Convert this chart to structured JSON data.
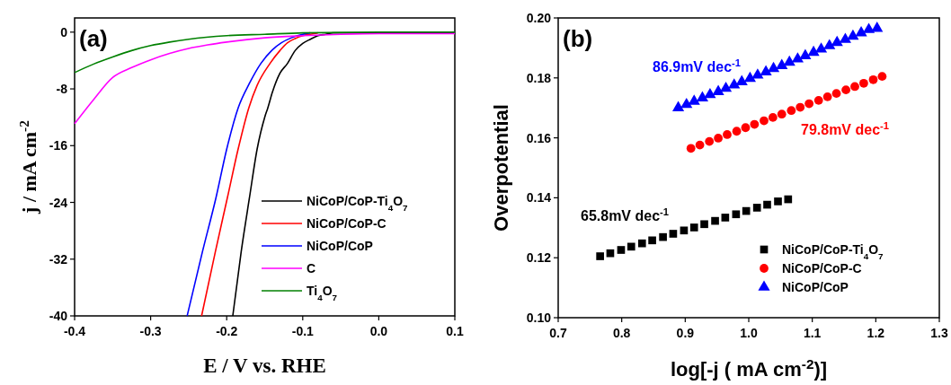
{
  "chart_data": [
    {
      "type": "line",
      "xlabel": "E / V vs. RHE",
      "ylabel": "j / mA cm$^{-2}$",
      "xlim": [
        -0.4,
        0.1
      ],
      "xticks": [
        -0.4,
        -0.3,
        -0.2,
        -0.1,
        {
          "value": 0,
          "label": "0.0"
        },
        0.1
      ],
      "ylim": [
        -40,
        2
      ],
      "yticks": [
        0,
        -8,
        -16,
        -24,
        -32,
        -40
      ],
      "legend": "bottom right",
      "grid": false,
      "annotations": [
        "(a)"
      ],
      "series": [
        {
          "name": "NiCoP/CoP-Ti$_{4}$O$_{7}$",
          "color": "#000000",
          "x": [
            -0.192,
            -0.181,
            -0.17,
            -0.16,
            -0.15,
            -0.146,
            -0.14,
            -0.13,
            -0.12,
            -0.11,
            -0.1,
            -0.09,
            -0.08,
            -0.07,
            -0.06,
            0.0,
            0.1
          ],
          "values": [
            -40,
            -31,
            -23.3,
            -16.5,
            -12,
            -10.7,
            -8.5,
            -5.8,
            -4.4,
            -2.6,
            -1.6,
            -1.0,
            -0.5,
            -0.3,
            -0.1,
            -0.1,
            -0.1
          ]
        },
        {
          "name": "NiCoP/CoP-C",
          "color": "#ff0000",
          "x": [
            -0.233,
            -0.215,
            -0.199,
            -0.185,
            -0.171,
            -0.16,
            -0.143,
            -0.13,
            -0.12,
            -0.11,
            -0.1,
            -0.09,
            -0.08
          ],
          "values": [
            -40,
            -31,
            -23.3,
            -16.5,
            -10.7,
            -7.5,
            -4.4,
            -2.6,
            -1.5,
            -0.9,
            -0.5,
            -0.3,
            -0.1
          ]
        },
        {
          "name": "NiCoP/CoP",
          "color": "#0000ff",
          "x": [
            -0.252,
            -0.232,
            -0.214,
            -0.2,
            -0.185,
            -0.17,
            -0.155,
            -0.14,
            -0.128,
            -0.115,
            -0.1,
            -0.09
          ],
          "values": [
            -40,
            -31,
            -23.3,
            -16.5,
            -10.7,
            -7.2,
            -4.4,
            -2.5,
            -1.5,
            -0.8,
            -0.3,
            -0.1
          ]
        },
        {
          "name": "C",
          "color": "#ff00ff",
          "x": [
            -0.4,
            -0.375,
            -0.35,
            -0.325,
            -0.3,
            -0.275,
            -0.25,
            -0.225,
            -0.2,
            -0.15,
            -0.1,
            -0.05,
            0.0,
            0.1
          ],
          "values": [
            -12.9,
            -9.5,
            -6.4,
            -5.0,
            -3.9,
            -3.0,
            -2.3,
            -1.8,
            -1.4,
            -0.8,
            -0.5,
            -0.3,
            -0.2,
            -0.2
          ]
        },
        {
          "name": "Ti$_{4}$O$_{7}$",
          "color": "#008000",
          "x": [
            -0.4,
            -0.375,
            -0.35,
            -0.325,
            -0.3,
            -0.275,
            -0.25,
            -0.2,
            -0.15,
            -0.1,
            0.0,
            0.1
          ],
          "values": [
            -5.7,
            -4.5,
            -3.5,
            -2.6,
            -1.9,
            -1.4,
            -1.0,
            -0.5,
            -0.3,
            -0.1,
            0.0,
            0.0
          ]
        }
      ]
    },
    {
      "type": "scatter",
      "xlabel": "log[-j ( mA cm$^{-2}$)]",
      "ylabel": "Overpotential",
      "xlim": [
        0.7,
        1.3
      ],
      "xticks": [
        0.7,
        0.8,
        0.9,
        {
          "value": 1,
          "label": "1.0"
        },
        1.1,
        1.2,
        1.3
      ],
      "ylim": [
        0.1,
        0.2
      ],
      "yticks": [
        {
          "value": 0.1,
          "label": "0.10"
        },
        {
          "value": 0.12,
          "label": "0.12"
        },
        {
          "value": 0.14,
          "label": "0.14"
        },
        {
          "value": 0.16,
          "label": "0.16"
        },
        {
          "value": 0.18,
          "label": "0.18"
        },
        {
          "value": 0.2,
          "label": "0.20"
        }
      ],
      "legend": "bottom right",
      "grid": false,
      "annotations": [
        "(b)",
        "86.9mV dec$^{-1}$",
        "79.8mV dec$^{-1}$",
        "65.8mV dec$^{-1}$"
      ],
      "series": [
        {
          "name": "NiCoP/CoP-Ti$_{4}$O$_{7}$",
          "color": "#000000",
          "marker": "square",
          "x": [
            0.766,
            0.782,
            0.799,
            0.815,
            0.832,
            0.848,
            0.865,
            0.881,
            0.898,
            0.914,
            0.93,
            0.947,
            0.963,
            0.98,
            0.996,
            1.013,
            1.029,
            1.046,
            1.062
          ],
          "values": [
            0.1205,
            0.1215,
            0.1226,
            0.1237,
            0.1248,
            0.1258,
            0.1269,
            0.128,
            0.1291,
            0.1301,
            0.1312,
            0.1323,
            0.1334,
            0.1345,
            0.1356,
            0.1367,
            0.1377,
            0.1388,
            0.1395
          ]
        },
        {
          "name": "NiCoP/CoP-C",
          "color": "#ff0000",
          "marker": "circle",
          "x": [
            0.909,
            0.923,
            0.938,
            0.952,
            0.966,
            0.981,
            0.995,
            1.009,
            1.024,
            1.038,
            1.052,
            1.067,
            1.081,
            1.095,
            1.11,
            1.124,
            1.138,
            1.153,
            1.167,
            1.181,
            1.196,
            1.21
          ],
          "values": [
            0.1565,
            0.1576,
            0.1588,
            0.1599,
            0.1611,
            0.1622,
            0.1634,
            0.1645,
            0.1657,
            0.1668,
            0.1679,
            0.1691,
            0.1702,
            0.1714,
            0.1725,
            0.1737,
            0.1748,
            0.176,
            0.1771,
            0.1782,
            0.1794,
            0.1805
          ]
        },
        {
          "name": "NiCoP/CoP",
          "color": "#0000ff",
          "marker": "triangle",
          "x": [
            0.889,
            0.902,
            0.914,
            0.927,
            0.939,
            0.952,
            0.964,
            0.977,
            0.989,
            1.002,
            1.014,
            1.027,
            1.039,
            1.052,
            1.064,
            1.077,
            1.089,
            1.102,
            1.114,
            1.127,
            1.139,
            1.152,
            1.164,
            1.177,
            1.189,
            1.202
          ],
          "values": [
            0.17,
            0.1711,
            0.1722,
            0.1733,
            0.1744,
            0.1754,
            0.1765,
            0.1776,
            0.1787,
            0.1798,
            0.1809,
            0.182,
            0.1831,
            0.1841,
            0.1852,
            0.1863,
            0.1874,
            0.1885,
            0.1896,
            0.1907,
            0.1918,
            0.1928,
            0.1939,
            0.195,
            0.1961,
            0.1965
          ]
        }
      ]
    }
  ]
}
